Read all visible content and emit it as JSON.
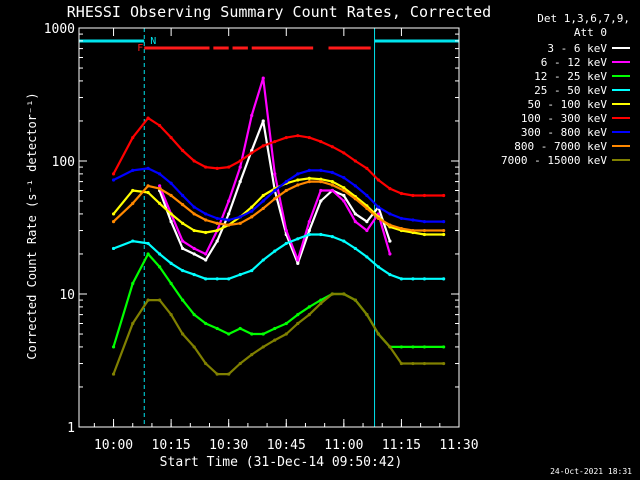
{
  "chart_data": {
    "type": "line",
    "title": "RHESSI Observing Summary Count Rates, Corrected",
    "xlabel": "Start Time (31-Dec-14 09:50:42)",
    "ylabel": "Corrected Count Rate (s⁻¹ detector⁻¹)",
    "y_scale": "log",
    "ylim": [
      1,
      1000
    ],
    "xlim": [
      "09:51",
      "11:30"
    ],
    "x_ticks": [
      "10:00",
      "10:15",
      "10:30",
      "10:45",
      "11:00",
      "11:15",
      "11:30"
    ],
    "y_ticks": [
      "1",
      "10",
      "100",
      "1000"
    ],
    "legend_header": [
      "Det 1,3,6,7,9,",
      "Att 0"
    ],
    "legend_placement": "right",
    "footer_date": "24-Oct-2021 18:31",
    "flags": {
      "N_label": "N",
      "F_label": "F",
      "N_color": "#00e5ee",
      "F_color": "#ff1a1a",
      "night_intervals": [
        [
          "09:51",
          "10:08"
        ],
        [
          "11:08",
          "11:30"
        ]
      ],
      "flare_intervals": [
        [
          "10:08",
          "10:25"
        ],
        [
          "10:26",
          "10:30"
        ],
        [
          "10:31",
          "10:35"
        ],
        [
          "10:36",
          "10:52"
        ],
        [
          "10:56",
          "11:07"
        ]
      ]
    },
    "x": [
      "09:51",
      "10:00",
      "10:05",
      "10:09",
      "10:12",
      "10:15",
      "10:18",
      "10:21",
      "10:24",
      "10:27",
      "10:30",
      "10:33",
      "10:36",
      "10:39",
      "10:42",
      "10:45",
      "10:48",
      "10:51",
      "10:54",
      "10:57",
      "11:00",
      "11:03",
      "11:06",
      "11:09",
      "11:12",
      "11:15",
      "11:18",
      "11:21",
      "11:26"
    ],
    "series": [
      {
        "name": "3 - 6 keV",
        "color": "#ffffff",
        "values": [
          null,
          null,
          null,
          null,
          60,
          35,
          22,
          20,
          18,
          25,
          40,
          70,
          120,
          200,
          60,
          28,
          17,
          30,
          50,
          60,
          55,
          40,
          35,
          45,
          25,
          null,
          null,
          null,
          null
        ]
      },
      {
        "name": "6 - 12 keV",
        "color": "#ff00ff",
        "values": [
          null,
          null,
          null,
          null,
          65,
          40,
          25,
          22,
          20,
          30,
          50,
          90,
          220,
          420,
          80,
          30,
          18,
          35,
          60,
          60,
          50,
          35,
          30,
          40,
          20,
          null,
          null,
          null,
          null
        ]
      },
      {
        "name": "12 - 25 keV",
        "color": "#00ff00",
        "values": [
          null,
          4,
          12,
          20,
          16,
          12,
          9,
          7,
          6,
          5.5,
          5,
          5.5,
          5,
          5,
          5.5,
          6,
          7,
          8,
          9,
          10,
          10,
          9,
          7,
          5,
          4,
          4,
          4,
          4,
          4
        ]
      },
      {
        "name": "25 - 50 keV",
        "color": "#00ffff",
        "values": [
          null,
          22,
          25,
          24,
          20,
          17,
          15,
          14,
          13,
          13,
          13,
          14,
          15,
          18,
          21,
          24,
          26,
          28,
          28,
          27,
          25,
          22,
          19,
          16,
          14,
          13,
          13,
          13,
          13
        ]
      },
      {
        "name": "50 - 100 keV",
        "color": "#ffff00",
        "values": [
          null,
          40,
          60,
          58,
          48,
          40,
          34,
          30,
          29,
          30,
          33,
          38,
          45,
          55,
          62,
          68,
          72,
          74,
          73,
          70,
          63,
          54,
          46,
          38,
          32,
          30,
          29,
          28,
          28
        ]
      },
      {
        "name": "100 - 300 keV",
        "color": "#ff0000",
        "values": [
          null,
          80,
          150,
          210,
          185,
          150,
          120,
          100,
          90,
          88,
          90,
          100,
          115,
          130,
          140,
          150,
          155,
          150,
          140,
          128,
          115,
          100,
          88,
          72,
          62,
          57,
          55,
          55,
          55
        ]
      },
      {
        "name": "300 - 800 keV",
        "color": "#0000ff",
        "values": [
          null,
          72,
          85,
          88,
          80,
          68,
          55,
          45,
          40,
          37,
          36,
          38,
          42,
          50,
          60,
          70,
          80,
          85,
          85,
          82,
          75,
          65,
          55,
          45,
          40,
          37,
          36,
          35,
          35
        ]
      },
      {
        "name": "800 - 7000 keV",
        "color": "#ff8800",
        "values": [
          null,
          35,
          48,
          65,
          62,
          55,
          47,
          40,
          36,
          34,
          33,
          34,
          38,
          44,
          52,
          60,
          66,
          70,
          70,
          66,
          60,
          52,
          44,
          37,
          33,
          31,
          30,
          30,
          30
        ]
      },
      {
        "name": "7000 - 15000 keV",
        "color": "#808000",
        "values": [
          null,
          2.5,
          6,
          9,
          9,
          7,
          5,
          4,
          3,
          2.5,
          2.5,
          3,
          3.5,
          4,
          4.5,
          5,
          6,
          7,
          8.5,
          10,
          10,
          9,
          7,
          5,
          4,
          3,
          3,
          3,
          3
        ]
      }
    ]
  }
}
